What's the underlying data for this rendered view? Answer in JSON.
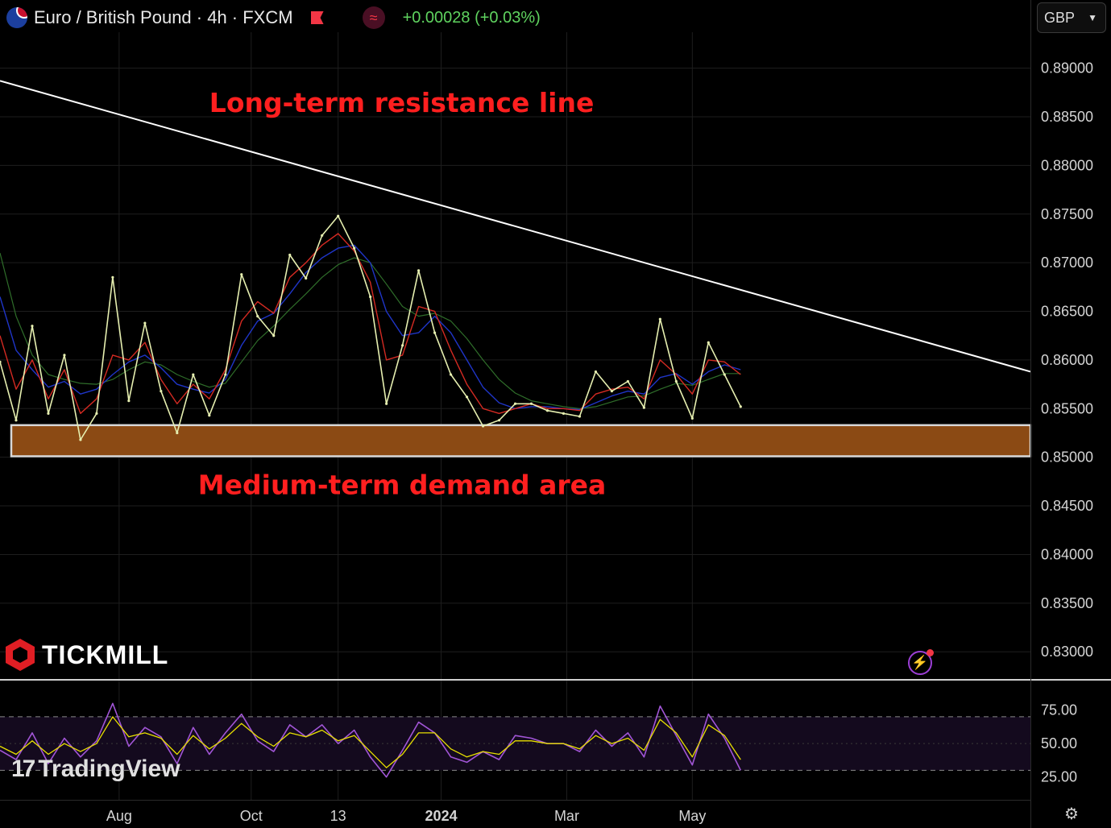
{
  "header": {
    "symbol": "Euro / British Pound · 4h · FXCM",
    "change": "+0.00028 (+0.03%)",
    "currency": "GBP",
    "indicator_icon": "wave-icon",
    "flag_icon": "eu-uk-flag-icon",
    "marker_icon": "red-flag-icon"
  },
  "branding": {
    "broker": "TICKMILL",
    "platform": "TradingView",
    "settings_icon": "gear-icon",
    "bolt_icon": "lightning-icon"
  },
  "colors": {
    "background": "#000000",
    "price": "#e6efb0",
    "ma_fast": "#d42a22",
    "ma_mid": "#1f35c8",
    "ma_slow": "#2f6e2a",
    "resistance": "#ffffff",
    "zone": "#8b4a14",
    "annotation": "#ff1f1f",
    "rsi": "#a155d6",
    "rsi_ma": "#e8e000"
  },
  "chart_data": [
    {
      "type": "line",
      "title": "Euro / British Pound · 4h · FXCM",
      "x_tick_labels": [
        "Aug",
        "Oct",
        "13",
        "2024",
        "Mar",
        "May"
      ],
      "y_tick_labels": [
        "0.89000",
        "0.88500",
        "0.88000",
        "0.87500",
        "0.87000",
        "0.86500",
        "0.86000",
        "0.85500",
        "0.85000",
        "0.84500",
        "0.84000",
        "0.83500",
        "0.83000"
      ],
      "ylim": [
        0.8272,
        0.8937
      ],
      "xlim": [
        0,
        64
      ],
      "x_ticks": [
        7.4,
        15.6,
        21,
        27.4,
        35.2,
        43
      ],
      "grid": true,
      "series": [
        {
          "role": "price",
          "x": [
            0,
            1,
            2,
            3,
            4,
            5,
            6,
            7,
            8,
            9,
            10,
            11,
            12,
            13,
            14,
            15,
            16,
            17,
            18,
            19,
            20,
            21,
            22,
            23,
            24,
            25,
            26,
            27,
            28,
            29,
            30,
            31,
            32,
            33,
            34,
            35,
            36,
            37,
            38,
            39,
            40,
            41,
            42,
            43,
            44,
            45,
            46
          ],
          "values": [
            0.8598,
            0.8538,
            0.8635,
            0.8545,
            0.8605,
            0.8518,
            0.8545,
            0.8685,
            0.8558,
            0.8638,
            0.8568,
            0.8525,
            0.8585,
            0.8543,
            0.8585,
            0.8688,
            0.8645,
            0.8625,
            0.8708,
            0.8684,
            0.8728,
            0.8748,
            0.8715,
            0.8665,
            0.8555,
            0.8615,
            0.8692,
            0.8628,
            0.8585,
            0.8562,
            0.8532,
            0.8538,
            0.8555,
            0.8555,
            0.8548,
            0.8545,
            0.8542,
            0.8588,
            0.8568,
            0.8578,
            0.8551,
            0.8642,
            0.8578,
            0.854,
            0.8618,
            0.8585,
            0.8552
          ]
        },
        {
          "role": "moving-average-fast",
          "x": [
            0,
            1,
            2,
            3,
            4,
            5,
            6,
            7,
            8,
            9,
            10,
            11,
            12,
            13,
            14,
            15,
            16,
            17,
            18,
            19,
            20,
            21,
            22,
            23,
            24,
            25,
            26,
            27,
            28,
            29,
            30,
            31,
            32,
            33,
            34,
            35,
            36,
            37,
            38,
            39,
            40,
            41,
            42,
            43,
            44,
            45,
            46
          ],
          "values": [
            0.8625,
            0.857,
            0.86,
            0.856,
            0.859,
            0.8545,
            0.856,
            0.8605,
            0.86,
            0.8618,
            0.858,
            0.8555,
            0.8575,
            0.856,
            0.859,
            0.864,
            0.866,
            0.8648,
            0.8685,
            0.87,
            0.8718,
            0.873,
            0.8712,
            0.868,
            0.86,
            0.8605,
            0.8655,
            0.865,
            0.861,
            0.8575,
            0.855,
            0.8545,
            0.855,
            0.8555,
            0.855,
            0.855,
            0.8548,
            0.8565,
            0.857,
            0.8572,
            0.856,
            0.86,
            0.8585,
            0.8565,
            0.86,
            0.8598,
            0.8585
          ]
        },
        {
          "role": "moving-average-mid",
          "x": [
            0,
            1,
            2,
            3,
            4,
            5,
            6,
            7,
            8,
            9,
            10,
            11,
            12,
            13,
            14,
            15,
            16,
            17,
            18,
            19,
            20,
            21,
            22,
            23,
            24,
            25,
            26,
            27,
            28,
            29,
            30,
            31,
            32,
            33,
            34,
            35,
            36,
            37,
            38,
            39,
            40,
            41,
            42,
            43,
            44,
            45,
            46
          ],
          "values": [
            0.8665,
            0.861,
            0.859,
            0.8572,
            0.8578,
            0.8565,
            0.857,
            0.8585,
            0.8598,
            0.8605,
            0.8592,
            0.8575,
            0.857,
            0.8566,
            0.858,
            0.8615,
            0.864,
            0.8648,
            0.8668,
            0.869,
            0.8705,
            0.8715,
            0.8718,
            0.87,
            0.865,
            0.8625,
            0.8628,
            0.8645,
            0.8628,
            0.86,
            0.8572,
            0.8556,
            0.855,
            0.8552,
            0.8552,
            0.855,
            0.8549,
            0.8556,
            0.8563,
            0.8568,
            0.8565,
            0.8582,
            0.8586,
            0.8575,
            0.8588,
            0.8595,
            0.859
          ]
        },
        {
          "role": "moving-average-slow",
          "x": [
            0,
            1,
            2,
            3,
            4,
            5,
            6,
            7,
            8,
            9,
            10,
            11,
            12,
            13,
            14,
            15,
            16,
            17,
            18,
            19,
            20,
            21,
            22,
            23,
            24,
            25,
            26,
            27,
            28,
            29,
            30,
            31,
            32,
            33,
            34,
            35,
            36,
            37,
            38,
            39,
            40,
            41,
            42,
            43,
            44,
            45,
            46
          ],
          "values": [
            0.871,
            0.8645,
            0.8605,
            0.8585,
            0.858,
            0.8576,
            0.8575,
            0.858,
            0.859,
            0.8598,
            0.8595,
            0.8585,
            0.8578,
            0.8572,
            0.8576,
            0.8598,
            0.862,
            0.8635,
            0.8652,
            0.8668,
            0.8685,
            0.8698,
            0.8705,
            0.87,
            0.8678,
            0.8655,
            0.8645,
            0.8648,
            0.864,
            0.8622,
            0.86,
            0.858,
            0.8566,
            0.8558,
            0.8555,
            0.8552,
            0.855,
            0.8552,
            0.8557,
            0.8562,
            0.8563,
            0.857,
            0.8576,
            0.8574,
            0.858,
            0.8586,
            0.8586
          ]
        }
      ],
      "resistance_line": {
        "x": [
          0,
          64
        ],
        "values": [
          0.8887,
          0.8588
        ]
      },
      "demand_zone": {
        "x_start": 0.7,
        "x_end": 64,
        "y_low": 0.8501,
        "y_high": 0.8533
      },
      "annotations": [
        {
          "id": "resistance-label",
          "text": "Long-term resistance line",
          "x": 13.0,
          "y": 0.8855,
          "color": "#ff1f1f"
        },
        {
          "id": "demand-label",
          "text": "Medium-term demand area",
          "x": 12.3,
          "y": 0.8462,
          "color": "#ff1f1f"
        }
      ]
    },
    {
      "type": "line",
      "title": "",
      "y_tick_labels": [
        "75.00",
        "50.00",
        "25.00"
      ],
      "ylim": [
        8,
        97
      ],
      "bands": [
        70,
        30
      ],
      "series": [
        {
          "role": "rsi",
          "x": [
            0,
            1,
            2,
            3,
            4,
            5,
            6,
            7,
            8,
            9,
            10,
            11,
            12,
            13,
            14,
            15,
            16,
            17,
            18,
            19,
            20,
            21,
            22,
            23,
            24,
            25,
            26,
            27,
            28,
            29,
            30,
            31,
            32,
            33,
            34,
            35,
            36,
            37,
            38,
            39,
            40,
            41,
            42,
            43,
            44,
            45,
            46
          ],
          "values": [
            45,
            38,
            58,
            35,
            54,
            40,
            52,
            80,
            48,
            62,
            55,
            35,
            62,
            42,
            58,
            72,
            52,
            44,
            64,
            55,
            64,
            50,
            60,
            40,
            25,
            45,
            66,
            58,
            40,
            36,
            44,
            38,
            56,
            54,
            50,
            50,
            44,
            60,
            48,
            58,
            40,
            78,
            56,
            34,
            72,
            54,
            30
          ]
        },
        {
          "role": "rsi-ma",
          "x": [
            0,
            1,
            2,
            3,
            4,
            5,
            6,
            7,
            8,
            9,
            10,
            11,
            12,
            13,
            14,
            15,
            16,
            17,
            18,
            19,
            20,
            21,
            22,
            23,
            24,
            25,
            26,
            27,
            28,
            29,
            30,
            31,
            32,
            33,
            34,
            35,
            36,
            37,
            38,
            39,
            40,
            41,
            42,
            43,
            44,
            45,
            46
          ],
          "values": [
            48,
            42,
            52,
            42,
            50,
            44,
            50,
            70,
            55,
            58,
            54,
            42,
            56,
            46,
            54,
            65,
            55,
            48,
            58,
            55,
            60,
            52,
            56,
            44,
            32,
            42,
            58,
            58,
            46,
            40,
            44,
            42,
            52,
            52,
            50,
            50,
            46,
            56,
            50,
            54,
            45,
            68,
            58,
            40,
            64,
            56,
            38
          ]
        }
      ]
    }
  ]
}
